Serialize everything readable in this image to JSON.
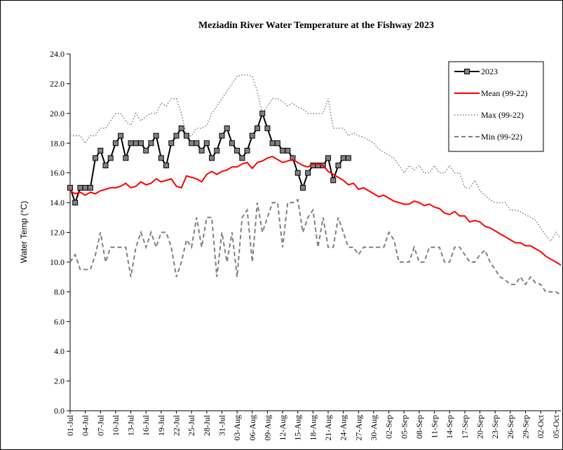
{
  "chart_data": {
    "type": "line",
    "title": "Meziadin River Water Temperature at the Fishway 2023",
    "y_label": "Water Temp (°C)",
    "categories": [
      "01-Jul",
      null,
      null,
      "04-Jul",
      null,
      null,
      "07-Jul",
      null,
      null,
      "10-Jul",
      null,
      null,
      "13-Jul",
      null,
      null,
      "16-Jul",
      null,
      null,
      "19-Jul",
      null,
      null,
      "22-Jul",
      null,
      null,
      "25-Jul",
      null,
      null,
      "28-Jul",
      null,
      null,
      "31-Jul",
      null,
      null,
      "03-Aug",
      null,
      null,
      "06-Aug",
      null,
      null,
      "09-Aug",
      null,
      null,
      "12-Aug",
      null,
      null,
      "15-Aug",
      null,
      null,
      "18-Aug",
      null,
      null,
      "21-Aug",
      null,
      null,
      "24-Aug",
      null,
      null,
      "27-Aug",
      null,
      null,
      "30-Aug",
      null,
      null,
      "02-Sep",
      null,
      null,
      "05-Sep",
      null,
      null,
      "08-Sep",
      null,
      null,
      "11-Sep",
      null,
      null,
      "14-Sep",
      null,
      null,
      "17-Sep",
      null,
      null,
      "20-Sep",
      null,
      null,
      "23-Sep",
      null,
      null,
      "26-Sep",
      null,
      null,
      "29-Sep",
      null,
      null,
      "02-Oct",
      null,
      null,
      "05-Oct",
      null
    ],
    "series": [
      {
        "name": "2023",
        "color": "#000000",
        "marker_color": "#808080",
        "line_style": "solid-markers",
        "values": [
          15,
          14,
          15,
          15,
          15,
          17,
          17.5,
          16.5,
          17,
          18,
          18.5,
          17,
          18,
          18,
          18,
          17.5,
          18,
          18.5,
          17,
          16.5,
          18,
          18.5,
          19,
          18.5,
          18,
          18,
          17.5,
          18,
          17,
          17.5,
          18.5,
          19,
          18,
          17.5,
          17,
          17.5,
          18.5,
          19,
          20,
          19,
          18,
          18,
          17.5,
          17.5,
          17,
          16,
          15,
          16,
          16.5,
          16.5,
          16.5,
          17,
          15.5,
          16.5,
          17,
          17,
          null,
          null,
          null,
          null,
          null,
          null,
          null,
          null,
          null,
          null,
          null,
          null,
          null,
          null,
          null,
          null,
          null,
          null,
          null,
          null,
          null,
          null,
          null,
          null,
          null,
          null,
          null,
          null,
          null,
          null,
          null,
          null,
          null,
          null,
          null,
          null,
          null,
          null,
          null,
          null,
          null,
          null
        ]
      },
      {
        "name": "Mean (99-22)",
        "color": "#ff0000",
        "line_style": "solid",
        "values": [
          14.8,
          14.6,
          14.7,
          14.5,
          14.7,
          14.6,
          14.8,
          14.9,
          15.0,
          15.0,
          15.1,
          15.3,
          15.0,
          15.1,
          15.4,
          15.2,
          15.3,
          15.6,
          15.4,
          15.5,
          15.6,
          15.1,
          15.0,
          15.8,
          15.7,
          15.6,
          15.4,
          15.9,
          16.1,
          15.9,
          16.1,
          16.2,
          16.4,
          16.4,
          16.6,
          16.7,
          16.3,
          16.7,
          16.8,
          17.0,
          17.1,
          16.9,
          16.7,
          16.8,
          16.9,
          16.7,
          16.5,
          16.4,
          16.6,
          16.6,
          16.5,
          16.1,
          15.9,
          15.7,
          15.5,
          15.2,
          15.3,
          14.9,
          15.0,
          14.8,
          14.6,
          14.4,
          14.5,
          14.3,
          14.1,
          14.0,
          13.9,
          13.9,
          14.1,
          14.0,
          13.8,
          13.9,
          13.7,
          13.6,
          13.3,
          13.2,
          13.4,
          13.1,
          13.1,
          12.7,
          12.8,
          12.7,
          12.4,
          12.3,
          12.1,
          11.9,
          11.7,
          11.5,
          11.3,
          11.3,
          11.1,
          11.1,
          10.9,
          10.7,
          10.4,
          10.2,
          10.0,
          9.8
        ]
      },
      {
        "name": "Max (99-22)",
        "color": "#808080",
        "line_style": "dotted",
        "values": [
          18.5,
          18.5,
          18.5,
          18.0,
          18.5,
          18.5,
          19,
          19,
          19.5,
          20,
          20,
          19.5,
          19.2,
          20,
          19.5,
          19.8,
          20,
          20,
          20.7,
          20.5,
          21,
          21,
          20,
          18.5,
          18.5,
          19,
          19,
          19.2,
          20,
          20.5,
          21,
          21.5,
          22,
          22.5,
          22.6,
          22.6,
          22.5,
          21.5,
          20,
          20.5,
          21,
          21,
          20.8,
          20.5,
          20.7,
          20.4,
          20.3,
          20,
          20,
          20,
          20,
          21,
          19,
          19,
          19,
          18.5,
          18.7,
          18.5,
          18.4,
          18.2,
          18,
          17.6,
          17.4,
          17.2,
          17,
          16.5,
          16,
          16.5,
          16.2,
          16.5,
          16,
          16,
          16.5,
          16,
          16,
          16.5,
          16,
          16,
          15,
          15,
          15.5,
          14.8,
          14.5,
          14.2,
          14,
          14,
          14,
          13.5,
          13.5,
          13.4,
          13.2,
          13,
          12.8,
          12.3,
          11.8,
          11.4,
          12,
          11.6
        ]
      },
      {
        "name": "Min (99-22)",
        "color": "#808080",
        "line_style": "dashed",
        "values": [
          10.0,
          10.5,
          9.5,
          9.5,
          9.5,
          10.5,
          12,
          10,
          11,
          11,
          11,
          11,
          9,
          11,
          12,
          11,
          12,
          11,
          12,
          12,
          11,
          9,
          10,
          11.5,
          11,
          13,
          11,
          13,
          13,
          9,
          12,
          10,
          12,
          9,
          13,
          13.5,
          10,
          14,
          12,
          13,
          14,
          14,
          11,
          14,
          14,
          14.2,
          12,
          13,
          13.5,
          11,
          13,
          11,
          11,
          13,
          12,
          11,
          11,
          10.5,
          11,
          11,
          11,
          11,
          11,
          12,
          11.5,
          10,
          10,
          10,
          11,
          10,
          10,
          11,
          11,
          11,
          10,
          10,
          11,
          11,
          10.5,
          10,
          10,
          10.5,
          10.8,
          10,
          9.5,
          9,
          8.8,
          8.5,
          8.5,
          9,
          8.5,
          9,
          8.6,
          8.5,
          8,
          8,
          8,
          7.8
        ]
      }
    ],
    "ylim": [
      0,
      24
    ],
    "yticks": [
      {
        "value": 0,
        "label": "0.0"
      },
      {
        "value": 2,
        "label": "2.0"
      },
      {
        "value": 4,
        "label": "4.0"
      },
      {
        "value": 6,
        "label": "6.0"
      },
      {
        "value": 8,
        "label": "8.0"
      },
      {
        "value": 10,
        "label": "10.0"
      },
      {
        "value": 12,
        "label": "12.0"
      },
      {
        "value": 14,
        "label": "14.0"
      },
      {
        "value": 16,
        "label": "16.0"
      },
      {
        "value": 18,
        "label": "18.0"
      },
      {
        "value": 20,
        "label": "20.0"
      },
      {
        "value": 22,
        "label": "22.0"
      },
      {
        "value": 24,
        "label": "24.0"
      }
    ],
    "grid": false,
    "legend": "upper right"
  }
}
